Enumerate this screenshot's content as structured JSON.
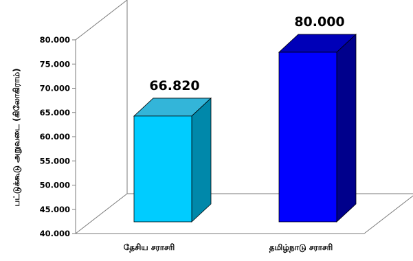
{
  "chart_data": {
    "type": "bar",
    "categories": [
      "தேசிய சராசரி",
      "தமிழ்நாடு சராசரி"
    ],
    "values": [
      66.82,
      80.0
    ],
    "value_labels": [
      "66.820",
      "80.000"
    ],
    "ylabel": "பட்டுக்கூடு அறுவடை (கிலோகிராம்)",
    "xlabel": "",
    "ylim": [
      40,
      80
    ],
    "yticks": [
      "40.000",
      "45.000",
      "50.000",
      "55.000",
      "60.000",
      "65.000",
      "70.000",
      "75.000",
      "80.000"
    ],
    "three_d": true,
    "grid": false,
    "legend": "none",
    "colors": [
      {
        "front": "#00ccff",
        "top": "#33b5d9",
        "side": "#0088aa"
      },
      {
        "front": "#0000ff",
        "top": "#0000b8",
        "side": "#00008c"
      }
    ]
  }
}
